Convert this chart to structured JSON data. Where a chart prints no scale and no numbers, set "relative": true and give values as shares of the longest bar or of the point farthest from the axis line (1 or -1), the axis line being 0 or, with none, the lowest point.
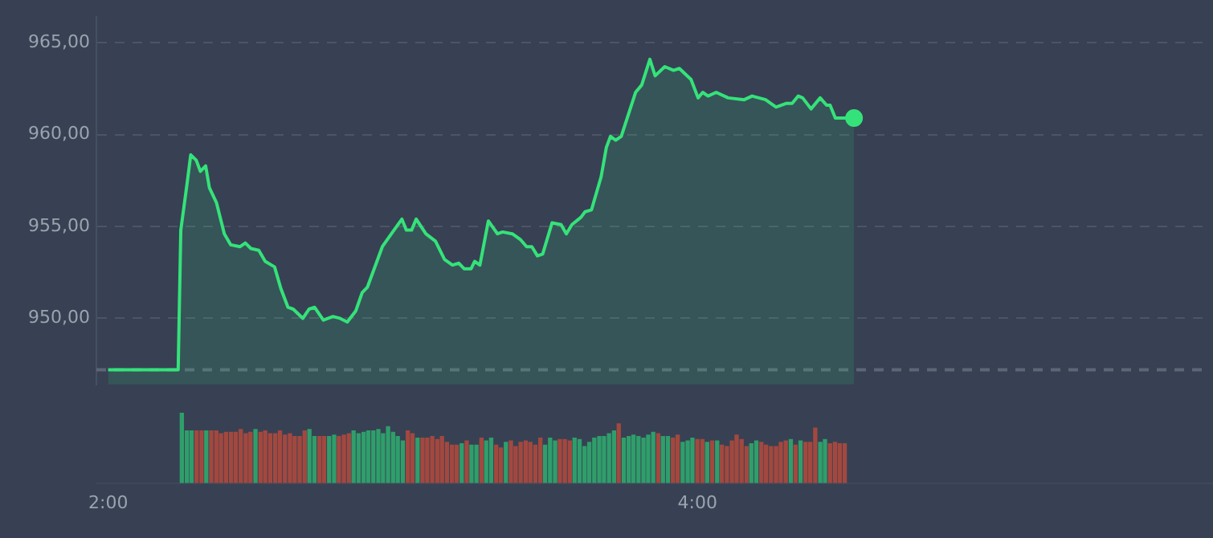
{
  "chart_data": [
    {
      "type": "area",
      "xlim": [
        1.96,
        5.75
      ],
      "ylim": [
        946.4,
        966.4
      ],
      "yticks": [
        {
          "value": 950,
          "label": "950,00"
        },
        {
          "value": 955,
          "label": "955,00"
        },
        {
          "value": 960,
          "label": "960,00"
        },
        {
          "value": 965,
          "label": "965,00"
        }
      ],
      "tick_labels": "y",
      "grid": "y",
      "marker": "none",
      "line_style": "solid",
      "ref_lines": [
        {
          "axis": "y",
          "value": 947.2,
          "color": "#5c6676",
          "line_style": "dashed"
        }
      ],
      "series": [
        {
          "type": "area",
          "color": "#35e27a",
          "x": [
            2.0,
            2.24,
            2.249,
            2.271,
            2.283,
            2.302,
            2.316,
            2.334,
            2.347,
            2.371,
            2.398,
            2.42,
            2.452,
            2.47,
            2.489,
            2.516,
            2.538,
            2.57,
            2.592,
            2.616,
            2.634,
            2.667,
            2.688,
            2.707,
            2.737,
            2.77,
            2.794,
            2.819,
            2.848,
            2.87,
            2.888,
            2.939,
            2.97,
            3.006,
            3.021,
            3.039,
            3.055,
            3.088,
            3.121,
            3.152,
            3.179,
            3.201,
            3.219,
            3.243,
            3.255,
            3.273,
            3.302,
            3.333,
            3.351,
            3.384,
            3.411,
            3.433,
            3.451,
            3.47,
            3.488,
            3.52,
            3.551,
            3.569,
            3.588,
            3.619,
            3.633,
            3.655,
            3.688,
            3.706,
            3.72,
            3.738,
            3.757,
            3.806,
            3.827,
            3.855,
            3.873,
            3.906,
            3.936,
            3.956,
            3.996,
            4.02,
            4.036,
            4.054,
            4.082,
            4.123,
            4.178,
            4.205,
            4.251,
            4.287,
            4.323,
            4.342,
            4.363,
            4.378,
            4.407,
            4.438,
            4.46,
            4.472,
            4.49,
            4.554
          ],
          "values": [
            947.2,
            947.2,
            954.8,
            957.4,
            958.9,
            958.6,
            958.0,
            958.3,
            957.1,
            956.3,
            954.6,
            954.0,
            953.9,
            954.1,
            953.8,
            953.7,
            953.1,
            952.8,
            951.6,
            950.6,
            950.5,
            950.0,
            950.5,
            950.6,
            949.9,
            950.1,
            950.0,
            949.8,
            950.4,
            951.4,
            951.7,
            953.9,
            954.6,
            955.4,
            954.8,
            954.8,
            955.4,
            954.6,
            954.2,
            953.2,
            952.9,
            953.0,
            952.7,
            952.7,
            953.1,
            952.9,
            955.3,
            954.6,
            954.7,
            954.6,
            954.3,
            953.9,
            953.9,
            953.4,
            953.5,
            955.2,
            955.1,
            954.6,
            955.1,
            955.5,
            955.8,
            955.9,
            957.7,
            959.3,
            959.9,
            959.7,
            959.9,
            962.3,
            962.7,
            964.1,
            963.2,
            963.7,
            963.5,
            963.6,
            963.0,
            962.0,
            962.3,
            962.1,
            962.3,
            962.0,
            961.9,
            962.1,
            961.9,
            961.5,
            961.7,
            961.7,
            962.1,
            962.0,
            961.4,
            962.0,
            961.6,
            961.6,
            960.9,
            960.9
          ]
        },
        {
          "type": "scatter",
          "color": "#35e27a",
          "marker": "circle",
          "x": [
            4.554
          ],
          "values": [
            960.9
          ]
        }
      ]
    },
    {
      "type": "bar",
      "relative": true,
      "xlim": [
        1.96,
        5.75
      ],
      "xticks": [
        {
          "value": 2,
          "label": "2:00"
        },
        {
          "value": 4,
          "label": "4:00"
        }
      ],
      "tick_labels": "x",
      "grid": false,
      "x": [
        2.25,
        2.267,
        2.283,
        2.3,
        2.317,
        2.333,
        2.35,
        2.367,
        2.383,
        2.4,
        2.417,
        2.433,
        2.45,
        2.467,
        2.483,
        2.5,
        2.517,
        2.533,
        2.55,
        2.567,
        2.583,
        2.6,
        2.617,
        2.633,
        2.65,
        2.667,
        2.683,
        2.7,
        2.717,
        2.733,
        2.75,
        2.767,
        2.783,
        2.8,
        2.817,
        2.833,
        2.85,
        2.867,
        2.883,
        2.9,
        2.917,
        2.933,
        2.95,
        2.967,
        2.983,
        3,
        3.017,
        3.033,
        3.05,
        3.067,
        3.083,
        3.1,
        3.117,
        3.133,
        3.15,
        3.167,
        3.183,
        3.2,
        3.217,
        3.233,
        3.25,
        3.267,
        3.283,
        3.3,
        3.317,
        3.333,
        3.35,
        3.367,
        3.383,
        3.4,
        3.417,
        3.433,
        3.45,
        3.467,
        3.483,
        3.5,
        3.517,
        3.533,
        3.55,
        3.567,
        3.583,
        3.6,
        3.617,
        3.633,
        3.65,
        3.667,
        3.683,
        3.7,
        3.717,
        3.733,
        3.75,
        3.767,
        3.783,
        3.8,
        3.817,
        3.833,
        3.85,
        3.867,
        3.883,
        3.9,
        3.917,
        3.933,
        3.95,
        3.967,
        3.983,
        4,
        4.017,
        4.033,
        4.05,
        4.067,
        4.083,
        4.1,
        4.117,
        4.133,
        4.15,
        4.167,
        4.183,
        4.2,
        4.217,
        4.233,
        4.25,
        4.267,
        4.283,
        4.3,
        4.317,
        4.333,
        4.35,
        4.367,
        4.383,
        4.4,
        4.417,
        4.433,
        4.45,
        4.467,
        4.483,
        4.5
      ],
      "values": [
        1.0,
        0.74,
        0.74,
        0.74,
        0.74,
        0.74,
        0.74,
        0.74,
        0.7,
        0.72,
        0.72,
        0.72,
        0.76,
        0.7,
        0.72,
        0.76,
        0.72,
        0.74,
        0.7,
        0.7,
        0.74,
        0.68,
        0.7,
        0.66,
        0.66,
        0.74,
        0.76,
        0.66,
        0.66,
        0.66,
        0.66,
        0.68,
        0.66,
        0.68,
        0.7,
        0.74,
        0.7,
        0.72,
        0.74,
        0.74,
        0.76,
        0.7,
        0.8,
        0.72,
        0.66,
        0.6,
        0.74,
        0.7,
        0.64,
        0.64,
        0.64,
        0.66,
        0.62,
        0.66,
        0.58,
        0.54,
        0.54,
        0.56,
        0.6,
        0.54,
        0.54,
        0.64,
        0.6,
        0.64,
        0.54,
        0.5,
        0.58,
        0.6,
        0.52,
        0.58,
        0.6,
        0.58,
        0.54,
        0.64,
        0.54,
        0.64,
        0.6,
        0.62,
        0.62,
        0.6,
        0.64,
        0.62,
        0.52,
        0.58,
        0.64,
        0.66,
        0.66,
        0.7,
        0.74,
        0.84,
        0.64,
        0.66,
        0.68,
        0.66,
        0.64,
        0.68,
        0.72,
        0.7,
        0.66,
        0.66,
        0.64,
        0.68,
        0.58,
        0.6,
        0.64,
        0.62,
        0.62,
        0.58,
        0.6,
        0.6,
        0.54,
        0.52,
        0.6,
        0.68,
        0.62,
        0.52,
        0.56,
        0.6,
        0.58,
        0.54,
        0.52,
        0.52,
        0.58,
        0.6,
        0.62,
        0.54,
        0.6,
        0.58,
        0.58,
        0.78,
        0.58,
        0.62,
        0.56,
        0.58,
        0.56,
        0.56
      ],
      "colors": [
        "#2f9e6b",
        "#2f9e6b",
        "#2f9e6b",
        "#a3483f",
        "#a3483f",
        "#2f9e6b",
        "#a3483f",
        "#a3483f",
        "#a3483f",
        "#a3483f",
        "#a3483f",
        "#a3483f",
        "#a3483f",
        "#a3483f",
        "#a3483f",
        "#2f9e6b",
        "#a3483f",
        "#a3483f",
        "#a3483f",
        "#a3483f",
        "#a3483f",
        "#a3483f",
        "#a3483f",
        "#a3483f",
        "#a3483f",
        "#a3483f",
        "#2f9e6b",
        "#2f9e6b",
        "#a3483f",
        "#a3483f",
        "#2f9e6b",
        "#2f9e6b",
        "#a3483f",
        "#a3483f",
        "#a3483f",
        "#2f9e6b",
        "#2f9e6b",
        "#2f9e6b",
        "#2f9e6b",
        "#2f9e6b",
        "#2f9e6b",
        "#2f9e6b",
        "#2f9e6b",
        "#2f9e6b",
        "#2f9e6b",
        "#2f9e6b",
        "#a3483f",
        "#a3483f",
        "#2f9e6b",
        "#a3483f",
        "#a3483f",
        "#a3483f",
        "#a3483f",
        "#a3483f",
        "#a3483f",
        "#a3483f",
        "#a3483f",
        "#2f9e6b",
        "#a3483f",
        "#2f9e6b",
        "#2f9e6b",
        "#a3483f",
        "#2f9e6b",
        "#2f9e6b",
        "#a3483f",
        "#a3483f",
        "#2f9e6b",
        "#a3483f",
        "#a3483f",
        "#a3483f",
        "#a3483f",
        "#a3483f",
        "#a3483f",
        "#a3483f",
        "#2f9e6b",
        "#2f9e6b",
        "#2f9e6b",
        "#a3483f",
        "#a3483f",
        "#a3483f",
        "#2f9e6b",
        "#2f9e6b",
        "#2f9e6b",
        "#2f9e6b",
        "#2f9e6b",
        "#2f9e6b",
        "#2f9e6b",
        "#2f9e6b",
        "#2f9e6b",
        "#a3483f",
        "#2f9e6b",
        "#2f9e6b",
        "#2f9e6b",
        "#2f9e6b",
        "#2f9e6b",
        "#2f9e6b",
        "#2f9e6b",
        "#a3483f",
        "#2f9e6b",
        "#2f9e6b",
        "#a3483f",
        "#a3483f",
        "#2f9e6b",
        "#2f9e6b",
        "#2f9e6b",
        "#a3483f",
        "#a3483f",
        "#2f9e6b",
        "#a3483f",
        "#2f9e6b",
        "#a3483f",
        "#a3483f",
        "#a3483f",
        "#a3483f",
        "#a3483f",
        "#a3483f",
        "#2f9e6b",
        "#2f9e6b",
        "#a3483f",
        "#a3483f",
        "#a3483f",
        "#a3483f",
        "#a3483f",
        "#a3483f",
        "#2f9e6b",
        "#a3483f",
        "#2f9e6b",
        "#a3483f",
        "#a3483f",
        "#a3483f",
        "#2f9e6b",
        "#2f9e6b",
        "#a3483f",
        "#a3483f",
        "#a3483f",
        "#a3483f"
      ]
    }
  ]
}
